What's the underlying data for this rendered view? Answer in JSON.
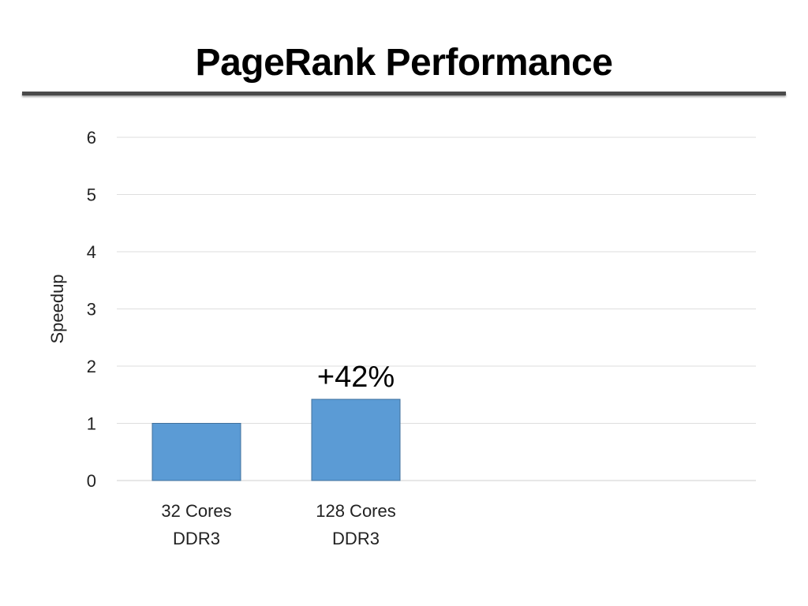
{
  "slide": {
    "title": "PageRank Performance"
  },
  "chart_data": {
    "type": "bar",
    "categories": [
      [
        "32 Cores",
        "DDR3"
      ],
      [
        "128 Cores",
        "DDR3"
      ]
    ],
    "values": [
      1.0,
      1.42
    ],
    "ylabel": "Speedup",
    "ylim": [
      0,
      6
    ],
    "yticks": [
      0,
      1,
      2,
      3,
      4,
      5,
      6
    ],
    "grid": true,
    "legend": "none",
    "bar_color": "#5B9BD5",
    "bar_edge_color": "#41719C",
    "annotations": [
      {
        "category_index": 1,
        "text": "+42%"
      }
    ]
  }
}
